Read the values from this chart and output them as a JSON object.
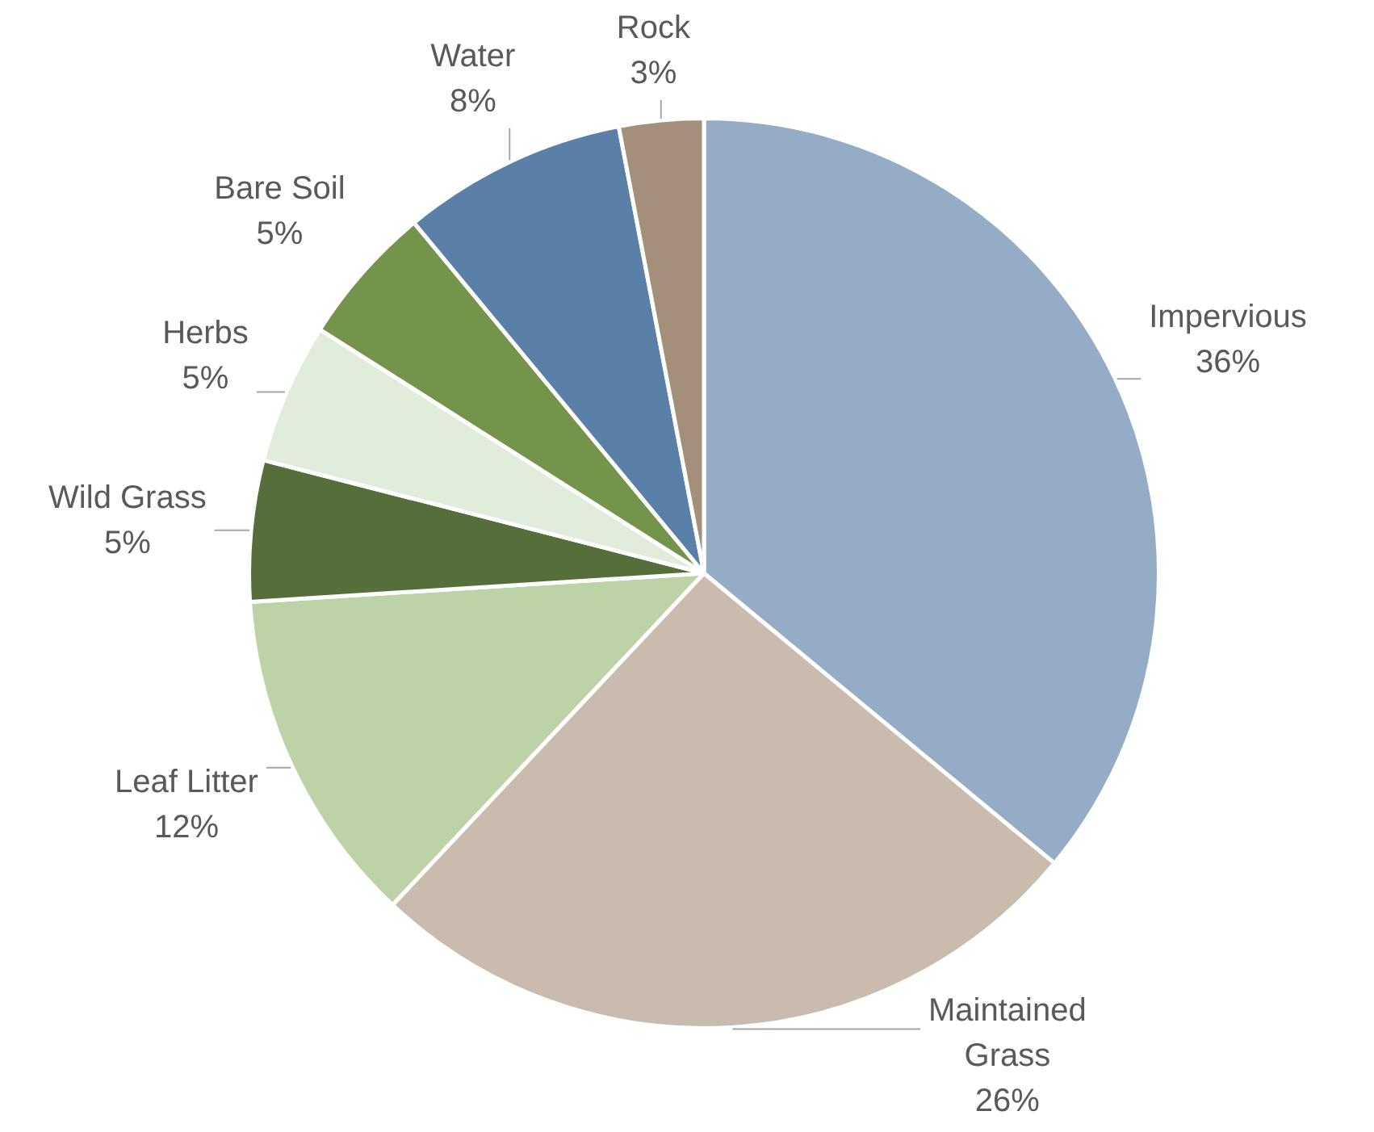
{
  "chart_data": {
    "type": "pie",
    "categories": [
      "Impervious",
      "Maintained Grass",
      "Leaf Litter",
      "Wild Grass",
      "Herbs",
      "Bare Soil",
      "Water",
      "Rock"
    ],
    "values": [
      36,
      26,
      12,
      5,
      5,
      5,
      8,
      3
    ],
    "value_labels": [
      "36%",
      "26%",
      "12%",
      "5%",
      "5%",
      "5%",
      "8%",
      "3%"
    ],
    "colors": [
      "#95acc6",
      "#c9bcae",
      "#bdd2a7",
      "#566e3a",
      "#e2ecdc",
      "#74944c",
      "#5b80a8",
      "#a48f7b"
    ]
  }
}
